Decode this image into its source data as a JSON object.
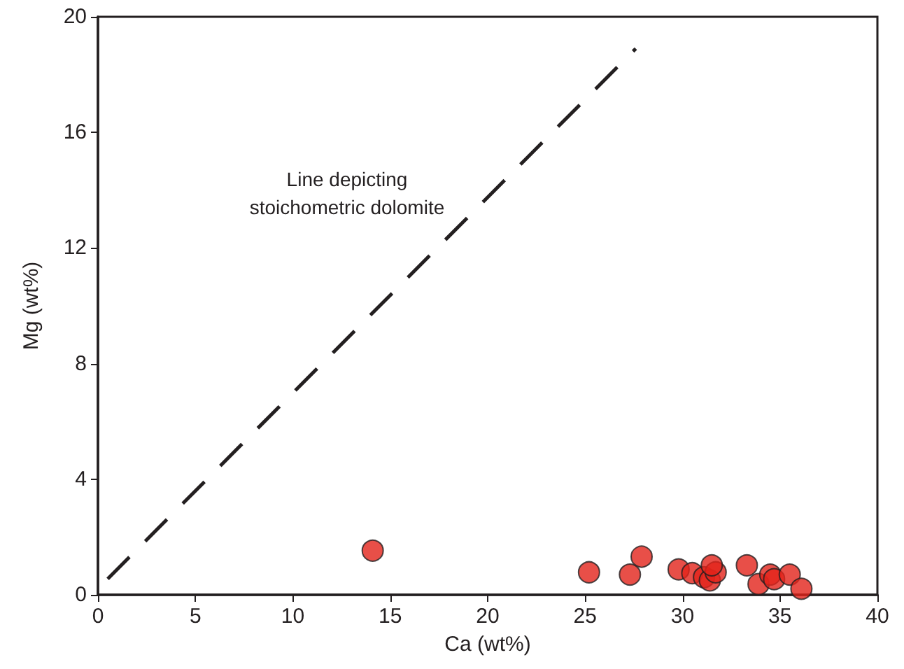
{
  "chart_data": {
    "type": "scatter",
    "xlabel": "Ca (wt%)",
    "ylabel": "Mg (wt%)",
    "xlim": [
      0,
      40
    ],
    "ylim": [
      0,
      20
    ],
    "xticks": [
      0,
      5,
      10,
      15,
      20,
      25,
      30,
      35,
      40
    ],
    "yticks": [
      0,
      4,
      8,
      12,
      16,
      20
    ],
    "grid": false,
    "marker": "circle",
    "series": [
      {
        "type": "line",
        "color": "#231f20",
        "line_style": "dashed",
        "marker": "none",
        "x": [
          0.5,
          27.6
        ],
        "values": [
          0.55,
          18.9
        ]
      },
      {
        "color": "#e2231a",
        "x": [
          14.1,
          25.2,
          27.3,
          27.9,
          29.8,
          30.5,
          31.1,
          31.4,
          31.7,
          31.5,
          33.3,
          33.9,
          34.5,
          34.7,
          35.5,
          36.1
        ],
        "values": [
          1.53,
          0.78,
          0.7,
          1.32,
          0.88,
          0.75,
          0.61,
          0.5,
          0.78,
          1.02,
          1.02,
          0.37,
          0.7,
          0.54,
          0.7,
          0.21
        ]
      }
    ],
    "annotations": [
      "Line depicting\nstoichometric dolomite"
    ]
  }
}
